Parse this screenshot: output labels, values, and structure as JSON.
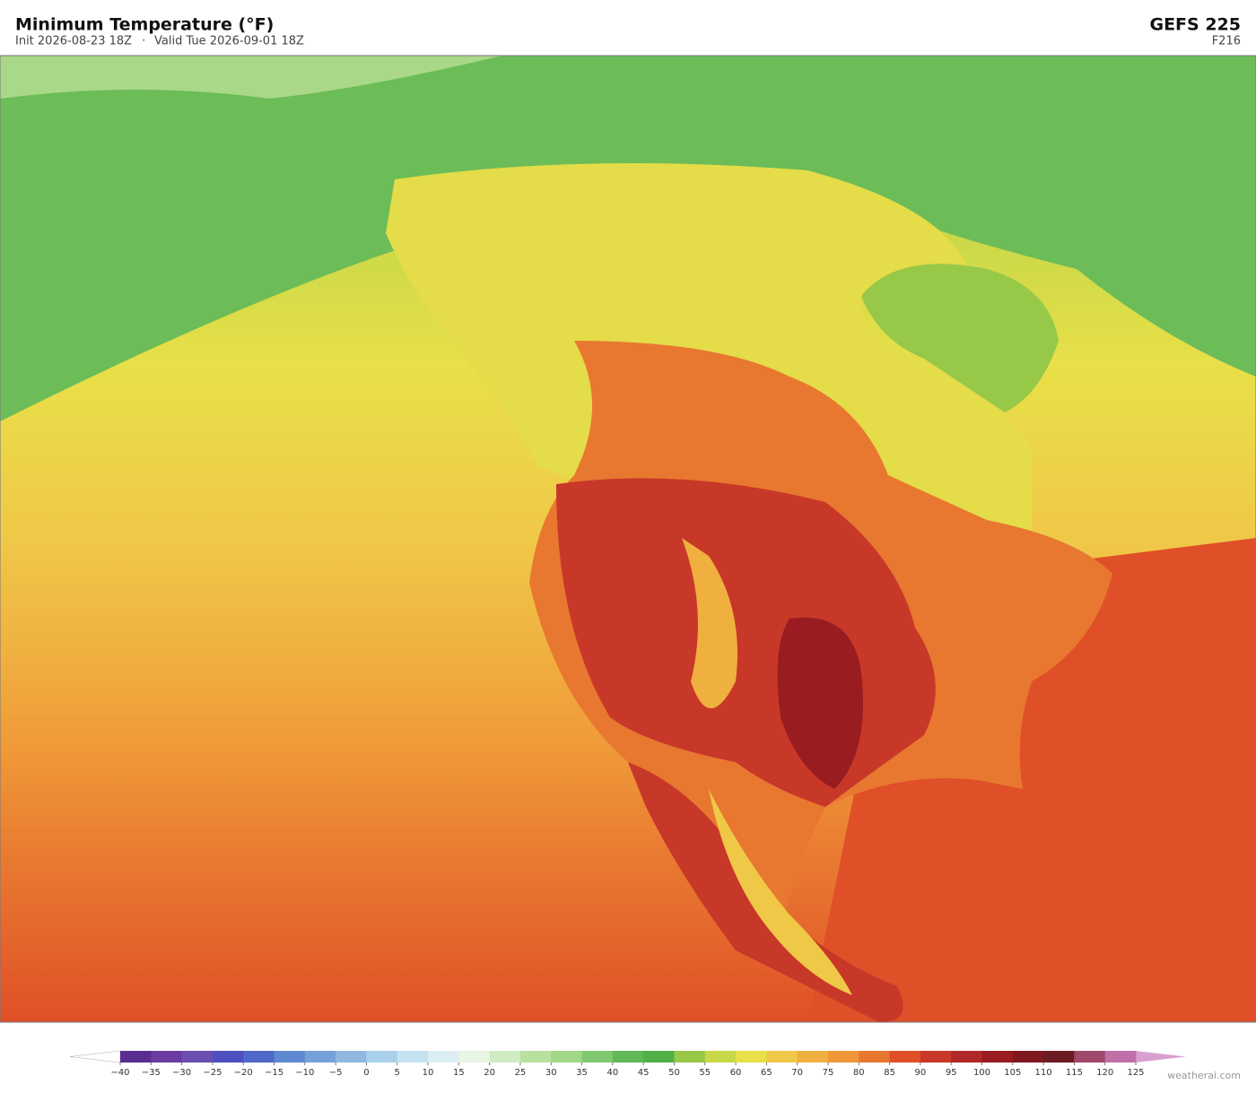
{
  "header": {
    "title": "Minimum Temperature  (°F)",
    "init": "Init 2026-08-23 18Z",
    "separator": "·",
    "valid": "Valid Tue 2026-09-01 18Z",
    "model": "GEFS  225",
    "forecast_hour": "F216"
  },
  "colorbar": {
    "ticks": [
      {
        "value": -40,
        "label": "−40"
      },
      {
        "value": -35,
        "label": "−35"
      },
      {
        "value": -30,
        "label": "−30"
      },
      {
        "value": -25,
        "label": "−25"
      },
      {
        "value": -20,
        "label": "−20"
      },
      {
        "value": -15,
        "label": "−15"
      },
      {
        "value": -10,
        "label": "−10"
      },
      {
        "value": -5,
        "label": "−5"
      },
      0,
      5,
      10,
      15,
      20,
      25,
      30,
      35,
      40,
      45,
      50,
      55,
      60,
      65,
      70,
      75,
      80,
      85,
      90,
      95,
      100,
      105,
      110,
      115,
      120,
      125
    ],
    "colors": [
      "#5a2d91",
      "#6a3c9f",
      "#6b4fb0",
      "#4f4fc0",
      "#5068c8",
      "#6088d0",
      "#78a0d8",
      "#90b8e0",
      "#a8d0ea",
      "#c4e2f0",
      "#dceef4",
      "#e8f4e4",
      "#d0ecc4",
      "#b8e0a0",
      "#a0d888",
      "#80c870",
      "#60b858",
      "#50b048",
      "#98c848",
      "#c8d848",
      "#e8e048",
      "#f0c848",
      "#f0b040",
      "#f09838",
      "#e87830",
      "#e05028",
      "#c83828",
      "#b02828",
      "#981c20",
      "#801820",
      "#6c1c24",
      "#a0486c",
      "#c070a8"
    ],
    "under_color": "#ffffff",
    "over_color": "#d8a0d0"
  },
  "footer": {
    "credit": "weatherai.com"
  }
}
